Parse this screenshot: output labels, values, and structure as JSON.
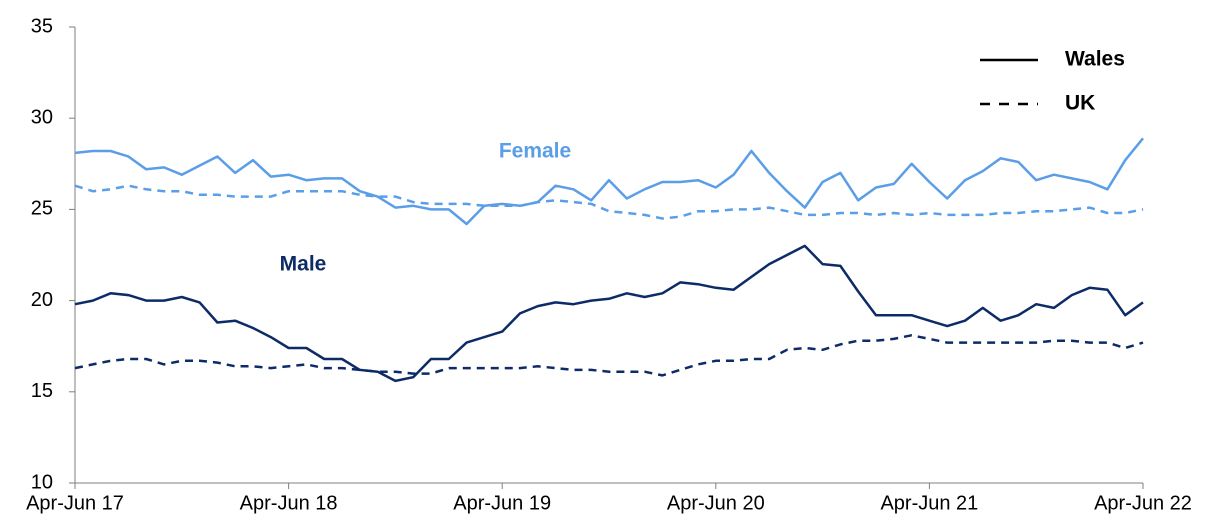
{
  "chart_data": {
    "type": "line",
    "categories": [
      "Apr-Jun 17",
      null,
      null,
      null,
      null,
      null,
      null,
      null,
      null,
      null,
      null,
      null,
      "Apr-Jun 18",
      null,
      null,
      null,
      null,
      null,
      null,
      null,
      null,
      null,
      null,
      null,
      "Apr-Jun 19",
      null,
      null,
      null,
      null,
      null,
      null,
      null,
      null,
      null,
      null,
      null,
      "Apr-Jun 20",
      null,
      null,
      null,
      null,
      null,
      null,
      null,
      null,
      null,
      null,
      null,
      "Apr-Jun 21",
      null,
      null,
      null,
      null,
      null,
      null,
      null,
      null,
      null,
      null,
      null,
      "Apr-Jun 22"
    ],
    "ylim": [
      10,
      35
    ],
    "yticks": [
      10,
      15,
      20,
      25,
      30,
      35
    ],
    "grid": false,
    "legend": "upper right",
    "groups": [
      {
        "name": "Female",
        "color": "#5b9ee8",
        "series": [
          {
            "name": "Wales",
            "dashed": false,
            "values": [
              28.1,
              28.2,
              28.2,
              27.9,
              27.2,
              27.3,
              26.9,
              27.4,
              27.9,
              27.0,
              27.7,
              26.8,
              26.9,
              26.6,
              26.7,
              26.7,
              26.0,
              25.7,
              25.1,
              25.2,
              25.0,
              25.0,
              24.2,
              25.2,
              25.3,
              25.2,
              25.4,
              26.3,
              26.1,
              25.5,
              26.6,
              25.6,
              26.1,
              26.5,
              26.5,
              26.6,
              26.2,
              26.9,
              28.2,
              27.0,
              26.0,
              25.1,
              26.5,
              27.0,
              25.5,
              26.2,
              26.4,
              27.5,
              26.5,
              25.6,
              26.6,
              27.1,
              27.8,
              27.6,
              26.6,
              26.9,
              26.7,
              26.5,
              26.1,
              27.7,
              28.9
            ]
          },
          {
            "name": "UK",
            "dashed": true,
            "values": [
              26.3,
              26.0,
              26.1,
              26.3,
              26.1,
              26.0,
              26.0,
              25.8,
              25.8,
              25.7,
              25.7,
              25.7,
              26.0,
              26.0,
              26.0,
              26.0,
              25.8,
              25.7,
              25.7,
              25.4,
              25.3,
              25.3,
              25.3,
              25.2,
              25.2,
              25.2,
              25.4,
              25.5,
              25.4,
              25.3,
              24.9,
              24.8,
              24.7,
              24.5,
              24.6,
              24.9,
              24.9,
              25.0,
              25.0,
              25.1,
              24.9,
              24.7,
              24.7,
              24.8,
              24.8,
              24.7,
              24.8,
              24.7,
              24.8,
              24.7,
              24.7,
              24.7,
              24.8,
              24.8,
              24.9,
              24.9,
              25.0,
              25.1,
              24.8,
              24.8,
              25.0
            ]
          }
        ]
      },
      {
        "name": "Male",
        "color": "#0d2b66",
        "series": [
          {
            "name": "Wales",
            "dashed": false,
            "values": [
              19.8,
              20.0,
              20.4,
              20.3,
              20.0,
              20.0,
              20.2,
              19.9,
              18.8,
              18.9,
              18.5,
              18.0,
              17.4,
              17.4,
              16.8,
              16.8,
              16.2,
              16.1,
              15.6,
              15.8,
              16.8,
              16.8,
              17.7,
              18.0,
              18.3,
              19.3,
              19.7,
              19.9,
              19.8,
              20.0,
              20.1,
              20.4,
              20.2,
              20.4,
              21.0,
              20.9,
              20.7,
              20.6,
              21.3,
              22.0,
              22.5,
              23.0,
              22.0,
              21.9,
              20.5,
              19.2,
              19.2,
              19.2,
              18.9,
              18.6,
              18.9,
              19.6,
              18.9,
              19.2,
              19.8,
              19.6,
              20.3,
              20.7,
              20.6,
              19.2,
              19.9
            ]
          },
          {
            "name": "UK",
            "dashed": true,
            "values": [
              16.3,
              16.5,
              16.7,
              16.8,
              16.8,
              16.5,
              16.7,
              16.7,
              16.6,
              16.4,
              16.4,
              16.3,
              16.4,
              16.5,
              16.3,
              16.3,
              16.2,
              16.1,
              16.1,
              16.0,
              16.0,
              16.3,
              16.3,
              16.3,
              16.3,
              16.3,
              16.4,
              16.3,
              16.2,
              16.2,
              16.1,
              16.1,
              16.1,
              15.9,
              16.2,
              16.5,
              16.7,
              16.7,
              16.8,
              16.8,
              17.3,
              17.4,
              17.3,
              17.6,
              17.8,
              17.8,
              17.9,
              18.1,
              17.9,
              17.7,
              17.7,
              17.7,
              17.7,
              17.7,
              17.7,
              17.8,
              17.8,
              17.7,
              17.7,
              17.4,
              17.7
            ]
          }
        ]
      }
    ]
  }
}
